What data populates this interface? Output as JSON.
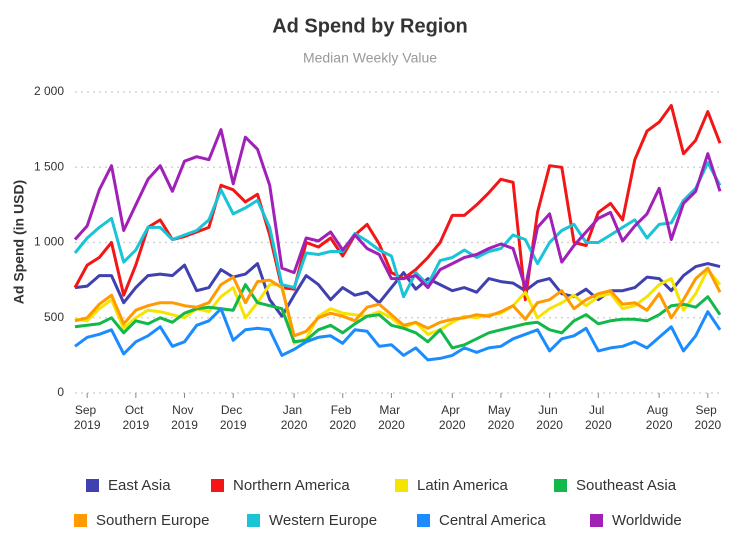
{
  "chart_data": {
    "type": "line",
    "title": "Ad Spend by Region",
    "subtitle": "Median Weekly Value",
    "ylabel": "Ad Spend (in USD)",
    "categories": [
      null,
      "Sep 2019",
      null,
      null,
      null,
      "Oct 2019",
      null,
      null,
      null,
      "Nov 2019",
      null,
      null,
      null,
      "Dec 2019",
      null,
      null,
      null,
      null,
      "Jan 2020",
      null,
      null,
      null,
      "Feb 2020",
      null,
      null,
      null,
      "Mar 2020",
      null,
      null,
      null,
      null,
      "Apr 2020",
      null,
      null,
      null,
      "May 2020",
      null,
      null,
      null,
      "Jun 2020",
      null,
      null,
      null,
      "Jul 2020",
      null,
      null,
      null,
      null,
      "Aug 2020",
      null,
      null,
      null,
      "Sep 2020",
      null
    ],
    "ylim": [
      0,
      2000
    ],
    "yticks": [
      0,
      500,
      {
        "value": 1000,
        "label": "1 000"
      },
      {
        "value": 1500,
        "label": "1 500"
      },
      {
        "value": 2000,
        "label": "2 000"
      }
    ],
    "grid": true,
    "legend": "bottom",
    "series": [
      {
        "name": "East Asia",
        "color": "#4040b0",
        "values": [
          700,
          710,
          780,
          780,
          600,
          700,
          780,
          790,
          780,
          850,
          680,
          700,
          820,
          770,
          790,
          860,
          620,
          510,
          650,
          780,
          720,
          620,
          700,
          650,
          670,
          600,
          700,
          800,
          690,
          760,
          720,
          680,
          700,
          670,
          760,
          740,
          730,
          680,
          740,
          760,
          660,
          640,
          690,
          620,
          680,
          680,
          700,
          770,
          760,
          680,
          780,
          840,
          860,
          840
        ]
      },
      {
        "name": "Northern America",
        "color": "#f31616",
        "values": [
          700,
          850,
          900,
          1000,
          650,
          850,
          1100,
          1150,
          1020,
          1040,
          1070,
          1100,
          1380,
          1350,
          1270,
          1320,
          1050,
          700,
          690,
          1000,
          970,
          1030,
          910,
          1050,
          1120,
          990,
          800,
          760,
          820,
          900,
          1000,
          1180,
          1180,
          1250,
          1330,
          1420,
          1400,
          620,
          1200,
          1510,
          1500,
          1000,
          980,
          1200,
          1260,
          1150,
          1550,
          1740,
          1800,
          1910,
          1590,
          1680,
          1870,
          1660
        ]
      },
      {
        "name": "Latin America",
        "color": "#f5e400",
        "values": [
          490,
          480,
          560,
          620,
          430,
          500,
          550,
          540,
          520,
          500,
          560,
          540,
          640,
          700,
          500,
          600,
          720,
          720,
          330,
          360,
          510,
          560,
          530,
          520,
          510,
          540,
          500,
          430,
          470,
          390,
          420,
          470,
          510,
          500,
          520,
          530,
          580,
          670,
          500,
          560,
          600,
          650,
          580,
          640,
          660,
          560,
          580,
          640,
          720,
          760,
          550,
          660,
          820,
          720
        ]
      },
      {
        "name": "Southeast Asia",
        "color": "#12b84a",
        "values": [
          440,
          450,
          460,
          500,
          400,
          480,
          460,
          500,
          470,
          530,
          560,
          570,
          560,
          550,
          720,
          600,
          580,
          560,
          340,
          350,
          420,
          450,
          400,
          460,
          510,
          520,
          450,
          430,
          400,
          340,
          420,
          300,
          320,
          360,
          400,
          420,
          440,
          460,
          470,
          420,
          400,
          480,
          520,
          460,
          480,
          490,
          490,
          480,
          520,
          580,
          590,
          570,
          640,
          520
        ]
      },
      {
        "name": "Southern Europe",
        "color": "#ff9a00",
        "values": [
          480,
          500,
          590,
          650,
          460,
          550,
          580,
          600,
          600,
          580,
          570,
          600,
          720,
          770,
          600,
          740,
          750,
          700,
          380,
          410,
          500,
          530,
          510,
          480,
          570,
          590,
          520,
          450,
          470,
          430,
          470,
          490,
          500,
          520,
          510,
          540,
          580,
          490,
          600,
          620,
          680,
          560,
          620,
          660,
          680,
          590,
          600,
          550,
          660,
          500,
          620,
          760,
          830,
          670
        ]
      },
      {
        "name": "Western Europe",
        "color": "#18c4d6",
        "values": [
          930,
          1030,
          1100,
          1160,
          870,
          950,
          1100,
          1100,
          1020,
          1050,
          1080,
          1150,
          1350,
          1190,
          1230,
          1280,
          1100,
          720,
          700,
          930,
          920,
          940,
          940,
          1060,
          1010,
          950,
          910,
          640,
          800,
          720,
          880,
          900,
          950,
          900,
          940,
          960,
          1050,
          1020,
          860,
          1000,
          1080,
          1120,
          1000,
          1000,
          1050,
          1100,
          1150,
          1030,
          1120,
          1130,
          1280,
          1360,
          1530,
          1380
        ]
      },
      {
        "name": "Central America",
        "color": "#1b8cff",
        "values": [
          310,
          370,
          390,
          420,
          260,
          340,
          380,
          440,
          310,
          340,
          450,
          480,
          560,
          350,
          420,
          430,
          420,
          250,
          290,
          340,
          370,
          380,
          330,
          420,
          410,
          310,
          320,
          250,
          300,
          220,
          230,
          250,
          300,
          270,
          300,
          310,
          360,
          390,
          420,
          280,
          360,
          380,
          430,
          280,
          300,
          310,
          340,
          300,
          370,
          440,
          280,
          380,
          540,
          420
        ]
      },
      {
        "name": "Worldwide",
        "color": "#a020b8",
        "values": [
          1020,
          1110,
          1350,
          1510,
          1080,
          1250,
          1420,
          1510,
          1340,
          1540,
          1570,
          1550,
          1750,
          1390,
          1700,
          1620,
          1380,
          830,
          800,
          1030,
          1010,
          1070,
          950,
          1050,
          960,
          920,
          760,
          760,
          780,
          700,
          820,
          860,
          900,
          920,
          960,
          990,
          960,
          700,
          1100,
          1190,
          870,
          980,
          1070,
          1160,
          1200,
          1010,
          1110,
          1190,
          1360,
          1020,
          1260,
          1340,
          1590,
          1340
        ]
      }
    ]
  }
}
